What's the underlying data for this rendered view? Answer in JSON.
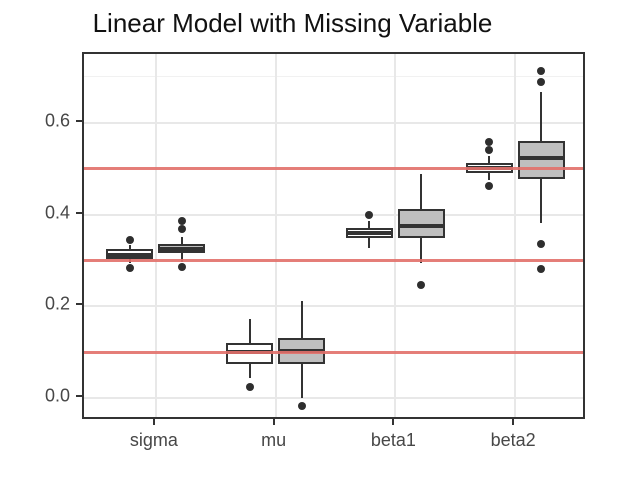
{
  "page": {
    "title": "Linear Model with Missing Variable"
  },
  "chart_data": {
    "type": "boxplot",
    "title": "Linear Model with Missing Variable",
    "categories": [
      "sigma",
      "mu",
      "beta1",
      "beta2"
    ],
    "y_axis": {
      "tick_labels": [
        "0.0",
        "0.2",
        "0.4",
        "0.6"
      ],
      "tick_values": [
        0.0,
        0.2,
        0.4,
        0.6
      ],
      "minor_values": [
        0.1,
        0.3,
        0.5,
        0.7
      ],
      "limits": [
        -0.049,
        0.749
      ]
    },
    "x_axis": {
      "tick_labels": [
        "sigma",
        "mu",
        "beta1",
        "beta2"
      ]
    },
    "reference_lines": {
      "values": [
        0.1,
        0.3,
        0.5
      ],
      "color": "#E2706A"
    },
    "legend": "none",
    "grid": "major-and-minor",
    "series": [
      {
        "name": "white-boxes",
        "fill": "#FFFFFF",
        "boxes": [
          {
            "category": "sigma",
            "whisker_low": 0.295,
            "q1": 0.303,
            "median": 0.312,
            "q3": 0.325,
            "whisker_high": 0.333,
            "outliers": [
              0.345,
              0.283
            ]
          },
          {
            "category": "mu",
            "whisker_low": 0.044,
            "q1": 0.076,
            "median": 0.102,
            "q3": 0.12,
            "whisker_high": 0.172,
            "outliers": [
              0.024
            ]
          },
          {
            "category": "beta1",
            "whisker_low": 0.328,
            "q1": 0.349,
            "median": 0.36,
            "q3": 0.371,
            "whisker_high": 0.385,
            "outliers": [
              0.398
            ]
          },
          {
            "category": "beta2",
            "whisker_low": 0.474,
            "q1": 0.491,
            "median": 0.502,
            "q3": 0.513,
            "whisker_high": 0.527,
            "outliers": [
              0.557,
              0.54,
              0.463
            ]
          }
        ]
      },
      {
        "name": "gray-boxes",
        "fill": "#BFBFBF",
        "boxes": [
          {
            "category": "sigma",
            "whisker_low": 0.297,
            "q1": 0.316,
            "median": 0.325,
            "q3": 0.335,
            "whisker_high": 0.351,
            "outliers": [
              0.386,
              0.369,
              0.285
            ]
          },
          {
            "category": "mu",
            "whisker_low": 0.001,
            "q1": 0.074,
            "median": 0.104,
            "q3": 0.131,
            "whisker_high": 0.212,
            "outliers": [
              -0.017
            ]
          },
          {
            "category": "beta1",
            "whisker_low": 0.295,
            "q1": 0.349,
            "median": 0.376,
            "q3": 0.413,
            "whisker_high": 0.489,
            "outliers": [
              0.246
            ]
          },
          {
            "category": "beta2",
            "whisker_low": 0.381,
            "q1": 0.478,
            "median": 0.522,
            "q3": 0.559,
            "whisker_high": 0.667,
            "outliers": [
              0.713,
              0.688,
              0.335,
              0.281
            ]
          }
        ]
      }
    ],
    "colors": {
      "box_border": "#333333",
      "whisker": "#333333",
      "outlier": "#2E2E2E",
      "reference_line": "#E2706A",
      "grid_major": "#E8E8E8",
      "grid_minor": "#F1F1F1",
      "panel_border": "#333333",
      "axis_text": "#474747",
      "tick_mark": "#333333",
      "title_text": "#111111"
    }
  }
}
